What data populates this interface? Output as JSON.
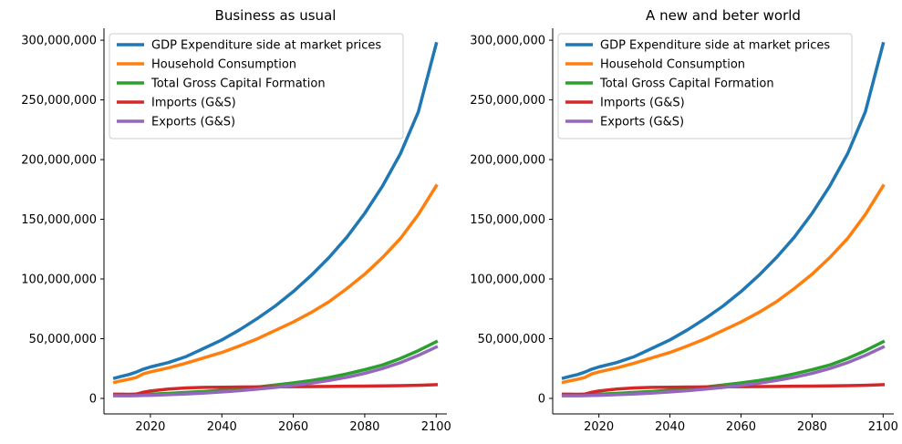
{
  "chart_data": [
    {
      "type": "line",
      "title": "Business as usual",
      "xlabel": "",
      "ylabel": "",
      "xlim": [
        2007,
        2103
      ],
      "ylim": [
        -13000000,
        310000000
      ],
      "xticks": [
        2020,
        2040,
        2060,
        2080,
        2100
      ],
      "xtick_labels": [
        "2020",
        "2040",
        "2060",
        "2080",
        "2100"
      ],
      "yticks": [
        0,
        50000000,
        100000000,
        150000000,
        200000000,
        250000000,
        300000000
      ],
      "ytick_labels": [
        "0",
        "50,000,000",
        "100,000,000",
        "150,000,000",
        "200,000,000",
        "250,000,000",
        "300,000,000"
      ],
      "grid": false,
      "legend_position": "upper-left",
      "x": [
        2010,
        2012,
        2014,
        2016,
        2018,
        2020,
        2025,
        2030,
        2035,
        2040,
        2045,
        2050,
        2055,
        2060,
        2065,
        2070,
        2075,
        2080,
        2085,
        2090,
        2095,
        2100
      ],
      "series": [
        {
          "name": "GDP Expenditure side at market prices",
          "color": "#1f77b4",
          "values": [
            17000000,
            18500000,
            20000000,
            22000000,
            24500000,
            26300000,
            30000000,
            35000000,
            42000000,
            49000000,
            57500000,
            67000000,
            77500000,
            89500000,
            103000000,
            118000000,
            135000000,
            155000000,
            178000000,
            205000000,
            240000000,
            297000000
          ]
        },
        {
          "name": "Household Consumption",
          "color": "#ff7f0e",
          "values": [
            13500000,
            14800000,
            16000000,
            17500000,
            20500000,
            22200000,
            25500000,
            29500000,
            34000000,
            38500000,
            44000000,
            50000000,
            57000000,
            64000000,
            72000000,
            81000000,
            92000000,
            104000000,
            118000000,
            134000000,
            154000000,
            178000000
          ]
        },
        {
          "name": "Total Gross Capital Formation",
          "color": "#2ca02c",
          "values": [
            2500000,
            2700000,
            2900000,
            3100000,
            3300000,
            3500000,
            4200000,
            5000000,
            5800000,
            6800000,
            8000000,
            9500000,
            11200000,
            13000000,
            15000000,
            17500000,
            20500000,
            24000000,
            28000000,
            33500000,
            40000000,
            47500000
          ]
        },
        {
          "name": "Imports (G&S)",
          "color": "#d62728",
          "values": [
            3500000,
            3500000,
            3400000,
            3600000,
            5200000,
            6200000,
            7800000,
            8800000,
            9200000,
            9400000,
            9500000,
            9600000,
            9700000,
            9800000,
            9900000,
            10000000,
            10200000,
            10300000,
            10500000,
            10700000,
            11000000,
            11500000
          ]
        },
        {
          "name": "Exports (G&S)",
          "color": "#9467bd",
          "values": [
            2200000,
            2200000,
            2200000,
            2300000,
            2400000,
            2600000,
            3100000,
            3700000,
            4500000,
            5400000,
            6500000,
            7800000,
            9200000,
            10800000,
            12700000,
            15000000,
            17700000,
            21000000,
            25000000,
            30000000,
            36000000,
            43000000
          ]
        }
      ]
    },
    {
      "type": "line",
      "title": "A new and beter world",
      "xlabel": "",
      "ylabel": "",
      "xlim": [
        2007,
        2103
      ],
      "ylim": [
        -13000000,
        310000000
      ],
      "xticks": [
        2020,
        2040,
        2060,
        2080,
        2100
      ],
      "xtick_labels": [
        "2020",
        "2040",
        "2060",
        "2080",
        "2100"
      ],
      "yticks": [
        0,
        50000000,
        100000000,
        150000000,
        200000000,
        250000000,
        300000000
      ],
      "ytick_labels": [
        "0",
        "50,000,000",
        "100,000,000",
        "150,000,000",
        "200,000,000",
        "250,000,000",
        "300,000,000"
      ],
      "grid": false,
      "legend_position": "upper-left",
      "x": [
        2010,
        2012,
        2014,
        2016,
        2018,
        2020,
        2025,
        2030,
        2035,
        2040,
        2045,
        2050,
        2055,
        2060,
        2065,
        2070,
        2075,
        2080,
        2085,
        2090,
        2095,
        2100
      ],
      "series": [
        {
          "name": "GDP Expenditure side at market prices",
          "color": "#1f77b4",
          "values": [
            17000000,
            18500000,
            20000000,
            22000000,
            24500000,
            26300000,
            30000000,
            35000000,
            42000000,
            49000000,
            57500000,
            67000000,
            77500000,
            89500000,
            103000000,
            118000000,
            135000000,
            155000000,
            178000000,
            205000000,
            240000000,
            297000000
          ]
        },
        {
          "name": "Household Consumption",
          "color": "#ff7f0e",
          "values": [
            13500000,
            14800000,
            16000000,
            17500000,
            20500000,
            22200000,
            25500000,
            29500000,
            34000000,
            38500000,
            44000000,
            50000000,
            57000000,
            64000000,
            72000000,
            81000000,
            92000000,
            104000000,
            118000000,
            134000000,
            154000000,
            178000000
          ]
        },
        {
          "name": "Total Gross Capital Formation",
          "color": "#2ca02c",
          "values": [
            2500000,
            2700000,
            2900000,
            3100000,
            3300000,
            3500000,
            4200000,
            5000000,
            5800000,
            6800000,
            8000000,
            9500000,
            11200000,
            13000000,
            15000000,
            17500000,
            20500000,
            24000000,
            28000000,
            33500000,
            40000000,
            47500000
          ]
        },
        {
          "name": "Imports (G&S)",
          "color": "#d62728",
          "values": [
            3500000,
            3500000,
            3400000,
            3600000,
            5200000,
            6200000,
            7800000,
            8800000,
            9200000,
            9400000,
            9500000,
            9600000,
            9700000,
            9800000,
            9900000,
            10000000,
            10200000,
            10300000,
            10500000,
            10700000,
            11000000,
            11500000
          ]
        },
        {
          "name": "Exports (G&S)",
          "color": "#9467bd",
          "values": [
            2200000,
            2200000,
            2200000,
            2300000,
            2400000,
            2600000,
            3100000,
            3700000,
            4500000,
            5400000,
            6500000,
            7800000,
            9200000,
            10800000,
            12700000,
            15000000,
            17700000,
            21000000,
            25000000,
            30000000,
            36000000,
            43000000
          ]
        }
      ]
    }
  ]
}
